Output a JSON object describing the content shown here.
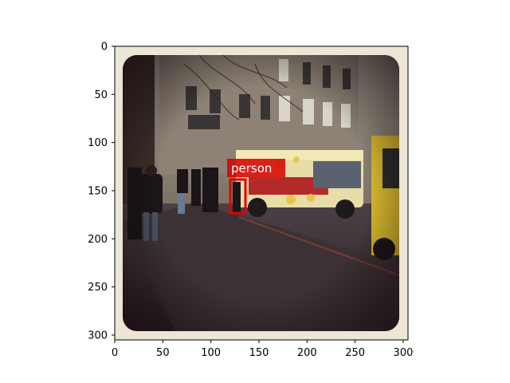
{
  "figure": {
    "x_ticks": [
      "0",
      "50",
      "100",
      "150",
      "200",
      "250",
      "300"
    ],
    "y_ticks": [
      "0",
      "50",
      "100",
      "150",
      "200",
      "250",
      "300"
    ]
  },
  "photo": {
    "scene": "street with food truck and pedestrians",
    "frame_color": "#ece6d4"
  },
  "detection": {
    "label": "person",
    "box_color": "#e00000"
  }
}
